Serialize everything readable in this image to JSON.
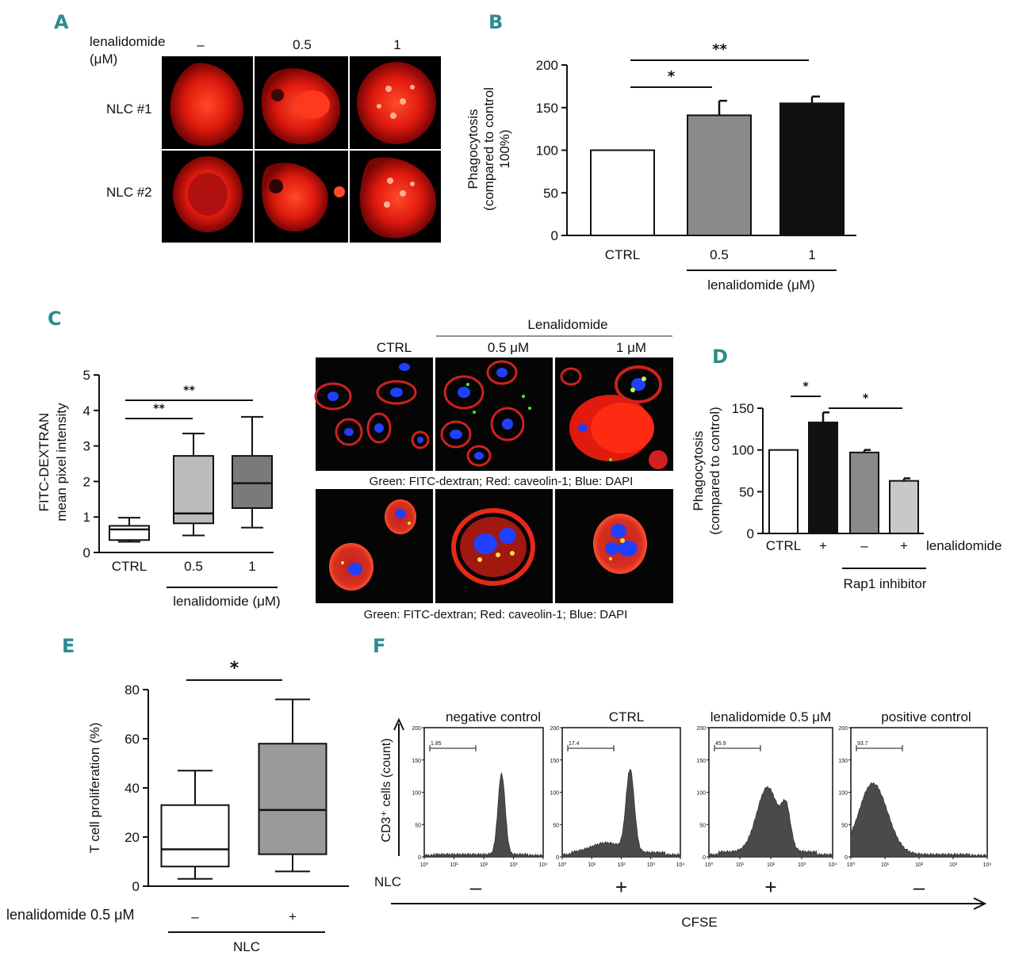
{
  "panels": {
    "a": "A",
    "b": "B",
    "c": "C",
    "d": "D",
    "e": "E",
    "f": "F"
  },
  "panel_a": {
    "drug_label": "lenalidomide",
    "unit_label": "(μM)",
    "col_labels": [
      "–",
      "0.5",
      "1"
    ],
    "row_labels": [
      "NLC #1",
      "NLC #2"
    ]
  },
  "panel_c_images": {
    "header": "Lenalidomide",
    "col_labels": [
      "CTRL",
      "0.5 μM",
      "1 μM"
    ],
    "caption_top": "Green: FITC-dextran; Red: caveolin-1; Blue: DAPI",
    "caption_bottom": "Green: FITC-dextran; Red: caveolin-1; Blue: DAPI"
  },
  "chart_data": [
    {
      "id": "B",
      "type": "bar",
      "categories": [
        "CTRL",
        "0.5",
        "1"
      ],
      "values": [
        100,
        141,
        155
      ],
      "errors": [
        0,
        17,
        8
      ],
      "colors": [
        "#ffffff",
        "#8a8a8a",
        "#111111"
      ],
      "ylabel": "Phagocytosis (compared to control 100%)",
      "ylabel_lines": [
        "Phagocytosis",
        "(compared to control",
        "100%)"
      ],
      "ylim": [
        0,
        200
      ],
      "yticks": [
        "0",
        "50",
        "100",
        "150",
        "200"
      ],
      "xgroup_label": "lenalidomide (μM)",
      "sig": [
        "*",
        "**"
      ]
    },
    {
      "id": "C",
      "type": "box",
      "categories": [
        "CTRL",
        "0.5",
        "1"
      ],
      "boxes": [
        {
          "min": 0.3,
          "q1": 0.35,
          "median": 0.65,
          "q3": 0.75,
          "max": 0.98
        },
        {
          "min": 0.48,
          "q1": 0.82,
          "median": 1.1,
          "q3": 2.72,
          "max": 3.35
        },
        {
          "min": 0.7,
          "q1": 1.25,
          "median": 1.95,
          "q3": 2.72,
          "max": 3.82
        }
      ],
      "colors": [
        "#ffffff",
        "#bcbcbc",
        "#7a7a7a"
      ],
      "ylabel_lines": [
        "FITC-DEXTRAN",
        "mean pixel intensity"
      ],
      "ylim": [
        0,
        5
      ],
      "yticks": [
        "0",
        "1",
        "2",
        "3",
        "4",
        "5"
      ],
      "xgroup_label": "lenalidomide (μM)",
      "sig": [
        "**",
        "**"
      ]
    },
    {
      "id": "D",
      "type": "bar",
      "categories": [
        "CTRL",
        "+",
        "–",
        "+"
      ],
      "values": [
        100,
        133,
        97,
        63
      ],
      "errors": [
        0,
        12,
        3,
        3
      ],
      "colors": [
        "#ffffff",
        "#111111",
        "#8a8a8a",
        "#c8c8c8"
      ],
      "ylabel_lines": [
        "Phagocytosis",
        "(compared to control)"
      ],
      "ylim": [
        0,
        150
      ],
      "yticks": [
        "0",
        "50",
        "100",
        "150"
      ],
      "row_label": "lenalidomide",
      "xgroup_label": "Rap1 inhibitor",
      "sig": [
        "*",
        "*"
      ]
    },
    {
      "id": "E",
      "type": "box",
      "categories": [
        "–",
        "+"
      ],
      "boxes": [
        {
          "min": 3,
          "q1": 8,
          "median": 15,
          "q3": 33,
          "max": 47
        },
        {
          "min": 6,
          "q1": 13,
          "median": 31,
          "q3": 58,
          "max": 76
        }
      ],
      "colors": [
        "#ffffff",
        "#9a9a9a"
      ],
      "ylabel": "T cell proliferation (%)",
      "ylim": [
        0,
        80
      ],
      "yticks": [
        "0",
        "20",
        "40",
        "60",
        "80"
      ],
      "row_label": "lenalidomide 0.5 μM",
      "xgroup_label": "NLC",
      "sig": [
        "*"
      ]
    },
    {
      "id": "F",
      "type": "histogram",
      "ylabel": "CD3⁺ cells (count)",
      "xlabel": "CFSE",
      "row_label": "NLC",
      "yticks": [
        "0",
        "50",
        "100",
        "150",
        "200"
      ],
      "xticks": [
        "10⁰",
        "10¹",
        "10²",
        "10³",
        "10⁴"
      ],
      "panels": [
        {
          "title": "negative control",
          "gate": "1.85",
          "nlc": "–",
          "peaks": [
            {
              "x": 2.6,
              "w": 0.12,
              "h": 125
            }
          ],
          "floor": 2
        },
        {
          "title": "CTRL",
          "gate": "17.4",
          "nlc": "+",
          "peaks": [
            {
              "x": 2.3,
              "w": 0.14,
              "h": 125
            },
            {
              "x": 1.5,
              "w": 0.5,
              "h": 15
            }
          ],
          "floor": 5
        },
        {
          "title": "lenalidomide 0.5 μM",
          "gate": "45.9",
          "nlc": "+",
          "peaks": [
            {
              "x": 1.9,
              "w": 0.35,
              "h": 100
            },
            {
              "x": 2.5,
              "w": 0.14,
              "h": 55
            }
          ],
          "floor": 6
        },
        {
          "title": "positive control",
          "gate": "93.7",
          "nlc": "–",
          "peaks": [
            {
              "x": 0.65,
              "w": 0.42,
              "h": 110
            }
          ],
          "floor": 2
        }
      ]
    }
  ]
}
